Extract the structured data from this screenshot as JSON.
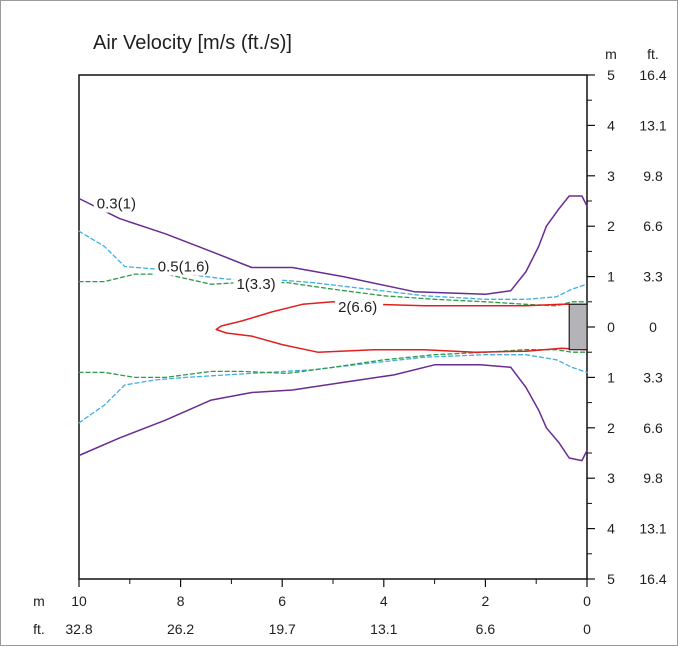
{
  "chart_data": {
    "type": "contour",
    "title": "Air Velocity [m/s (ft./s)]",
    "axes": {
      "x": {
        "unit_labels": [
          "m",
          "ft."
        ],
        "ticks_m": [
          "10",
          "8",
          "6",
          "4",
          "2",
          "0"
        ],
        "ticks_ft": [
          "32.8",
          "26.2",
          "19.7",
          "13.1",
          "6.6",
          "0"
        ],
        "range_m": [
          10,
          0
        ],
        "reversed": true
      },
      "y": {
        "unit_labels": [
          "m",
          "ft."
        ],
        "ticks_m": [
          "5",
          "4",
          "3",
          "2",
          "1",
          "0",
          "1",
          "2",
          "3",
          "4",
          "5"
        ],
        "ticks_ft": [
          "16.4",
          "13.1",
          "9.8",
          "6.6",
          "3.3",
          "0",
          "3.3",
          "6.6",
          "9.8",
          "13.1",
          "16.4"
        ],
        "range_m": [
          5,
          -5
        ],
        "position": "right"
      }
    },
    "grid": false,
    "series": [
      {
        "name": "0.3(1)",
        "color": "#6b2c91",
        "dash": "solid",
        "segments": [
          [
            [
              10,
              2.55
            ],
            [
              9.2,
              2.15
            ],
            [
              8.3,
              1.85
            ],
            [
              7.4,
              1.5
            ],
            [
              6.6,
              1.18
            ],
            [
              5.8,
              1.18
            ],
            [
              4.8,
              1.0
            ],
            [
              3.4,
              0.7
            ],
            [
              2.0,
              0.65
            ],
            [
              1.5,
              0.72
            ],
            [
              1.2,
              1.1
            ],
            [
              0.95,
              1.6
            ],
            [
              0.8,
              2.0
            ],
            [
              0.55,
              2.35
            ],
            [
              0.35,
              2.6
            ],
            [
              0.1,
              2.6
            ],
            [
              0.0,
              2.4
            ]
          ],
          [
            [
              10,
              -2.55
            ],
            [
              9.2,
              -2.2
            ],
            [
              8.3,
              -1.85
            ],
            [
              7.4,
              -1.45
            ],
            [
              6.6,
              -1.3
            ],
            [
              5.8,
              -1.25
            ],
            [
              4.8,
              -1.1
            ],
            [
              3.8,
              -0.95
            ],
            [
              3.0,
              -0.75
            ],
            [
              2.1,
              -0.75
            ],
            [
              1.5,
              -0.8
            ],
            [
              1.2,
              -1.2
            ],
            [
              0.95,
              -1.65
            ],
            [
              0.8,
              -2.0
            ],
            [
              0.55,
              -2.3
            ],
            [
              0.35,
              -2.6
            ],
            [
              0.1,
              -2.65
            ],
            [
              0.0,
              -2.45
            ]
          ]
        ]
      },
      {
        "name": "0.5(1.6)",
        "color": "#3fb0e0",
        "dash": "dashed",
        "segments": [
          [
            [
              10,
              1.9
            ],
            [
              9.5,
              1.6
            ],
            [
              9.1,
              1.2
            ],
            [
              8.5,
              1.15
            ],
            [
              7.9,
              1.05
            ],
            [
              7.1,
              0.95
            ],
            [
              6.3,
              0.95
            ],
            [
              5.4,
              0.88
            ],
            [
              4.3,
              0.75
            ],
            [
              3.2,
              0.62
            ],
            [
              2.0,
              0.55
            ],
            [
              1.2,
              0.55
            ],
            [
              0.6,
              0.6
            ],
            [
              0.3,
              0.75
            ],
            [
              0.0,
              0.85
            ]
          ],
          [
            [
              10,
              -1.9
            ],
            [
              9.5,
              -1.55
            ],
            [
              9.1,
              -1.15
            ],
            [
              8.5,
              -1.05
            ],
            [
              7.9,
              -1.0
            ],
            [
              7.1,
              -0.95
            ],
            [
              6.3,
              -0.9
            ],
            [
              5.4,
              -0.85
            ],
            [
              4.3,
              -0.72
            ],
            [
              3.2,
              -0.6
            ],
            [
              2.0,
              -0.55
            ],
            [
              1.2,
              -0.55
            ],
            [
              0.6,
              -0.65
            ],
            [
              0.3,
              -0.8
            ],
            [
              0.0,
              -0.9
            ]
          ]
        ]
      },
      {
        "name": "1(3.3)",
        "color": "#2e9a4a",
        "dash": "dashed",
        "segments": [
          [
            [
              10,
              0.9
            ],
            [
              9.5,
              0.9
            ],
            [
              8.9,
              1.05
            ],
            [
              8.3,
              1.05
            ],
            [
              7.4,
              0.85
            ],
            [
              6.8,
              0.88
            ],
            [
              5.9,
              0.88
            ],
            [
              5.0,
              0.75
            ],
            [
              4.0,
              0.62
            ],
            [
              3.0,
              0.55
            ],
            [
              2.0,
              0.5
            ],
            [
              1.2,
              0.45
            ],
            [
              0.6,
              0.42
            ],
            [
              0.3,
              0.5
            ],
            [
              0.0,
              0.5
            ]
          ],
          [
            [
              10,
              -0.9
            ],
            [
              9.5,
              -0.9
            ],
            [
              8.9,
              -1.0
            ],
            [
              8.3,
              -1.0
            ],
            [
              7.4,
              -0.88
            ],
            [
              6.8,
              -0.88
            ],
            [
              5.9,
              -0.92
            ],
            [
              5.0,
              -0.8
            ],
            [
              4.0,
              -0.65
            ],
            [
              3.0,
              -0.55
            ],
            [
              2.0,
              -0.5
            ],
            [
              1.2,
              -0.45
            ],
            [
              0.6,
              -0.45
            ],
            [
              0.3,
              -0.5
            ],
            [
              0.0,
              -0.5
            ]
          ]
        ]
      },
      {
        "name": "2(6.6)",
        "color": "#e02020",
        "dash": "solid",
        "segments": [
          [
            [
              0.0,
              0.45
            ],
            [
              0.5,
              0.45
            ],
            [
              1.2,
              0.42
            ],
            [
              2.2,
              0.42
            ],
            [
              3.2,
              0.42
            ],
            [
              4.2,
              0.45
            ],
            [
              5.0,
              0.5
            ],
            [
              5.6,
              0.45
            ],
            [
              6.2,
              0.3
            ],
            [
              6.8,
              0.12
            ],
            [
              7.2,
              0.02
            ],
            [
              7.3,
              -0.05
            ],
            [
              7.1,
              -0.12
            ],
            [
              6.6,
              -0.18
            ],
            [
              6.0,
              -0.35
            ],
            [
              5.3,
              -0.5
            ],
            [
              4.2,
              -0.45
            ],
            [
              3.2,
              -0.45
            ],
            [
              2.2,
              -0.5
            ],
            [
              1.2,
              -0.48
            ],
            [
              0.5,
              -0.42
            ],
            [
              0.0,
              -0.45
            ]
          ]
        ]
      }
    ],
    "contour_labels": [
      "0.3(1)",
      "0.5(1.6)",
      "1(3.3)",
      "2(6.6)"
    ],
    "source_box": {
      "x_range_m": [
        0.35,
        0.0
      ],
      "y_range_m": [
        0.45,
        -0.45
      ],
      "color": "#b3b3b8"
    }
  }
}
